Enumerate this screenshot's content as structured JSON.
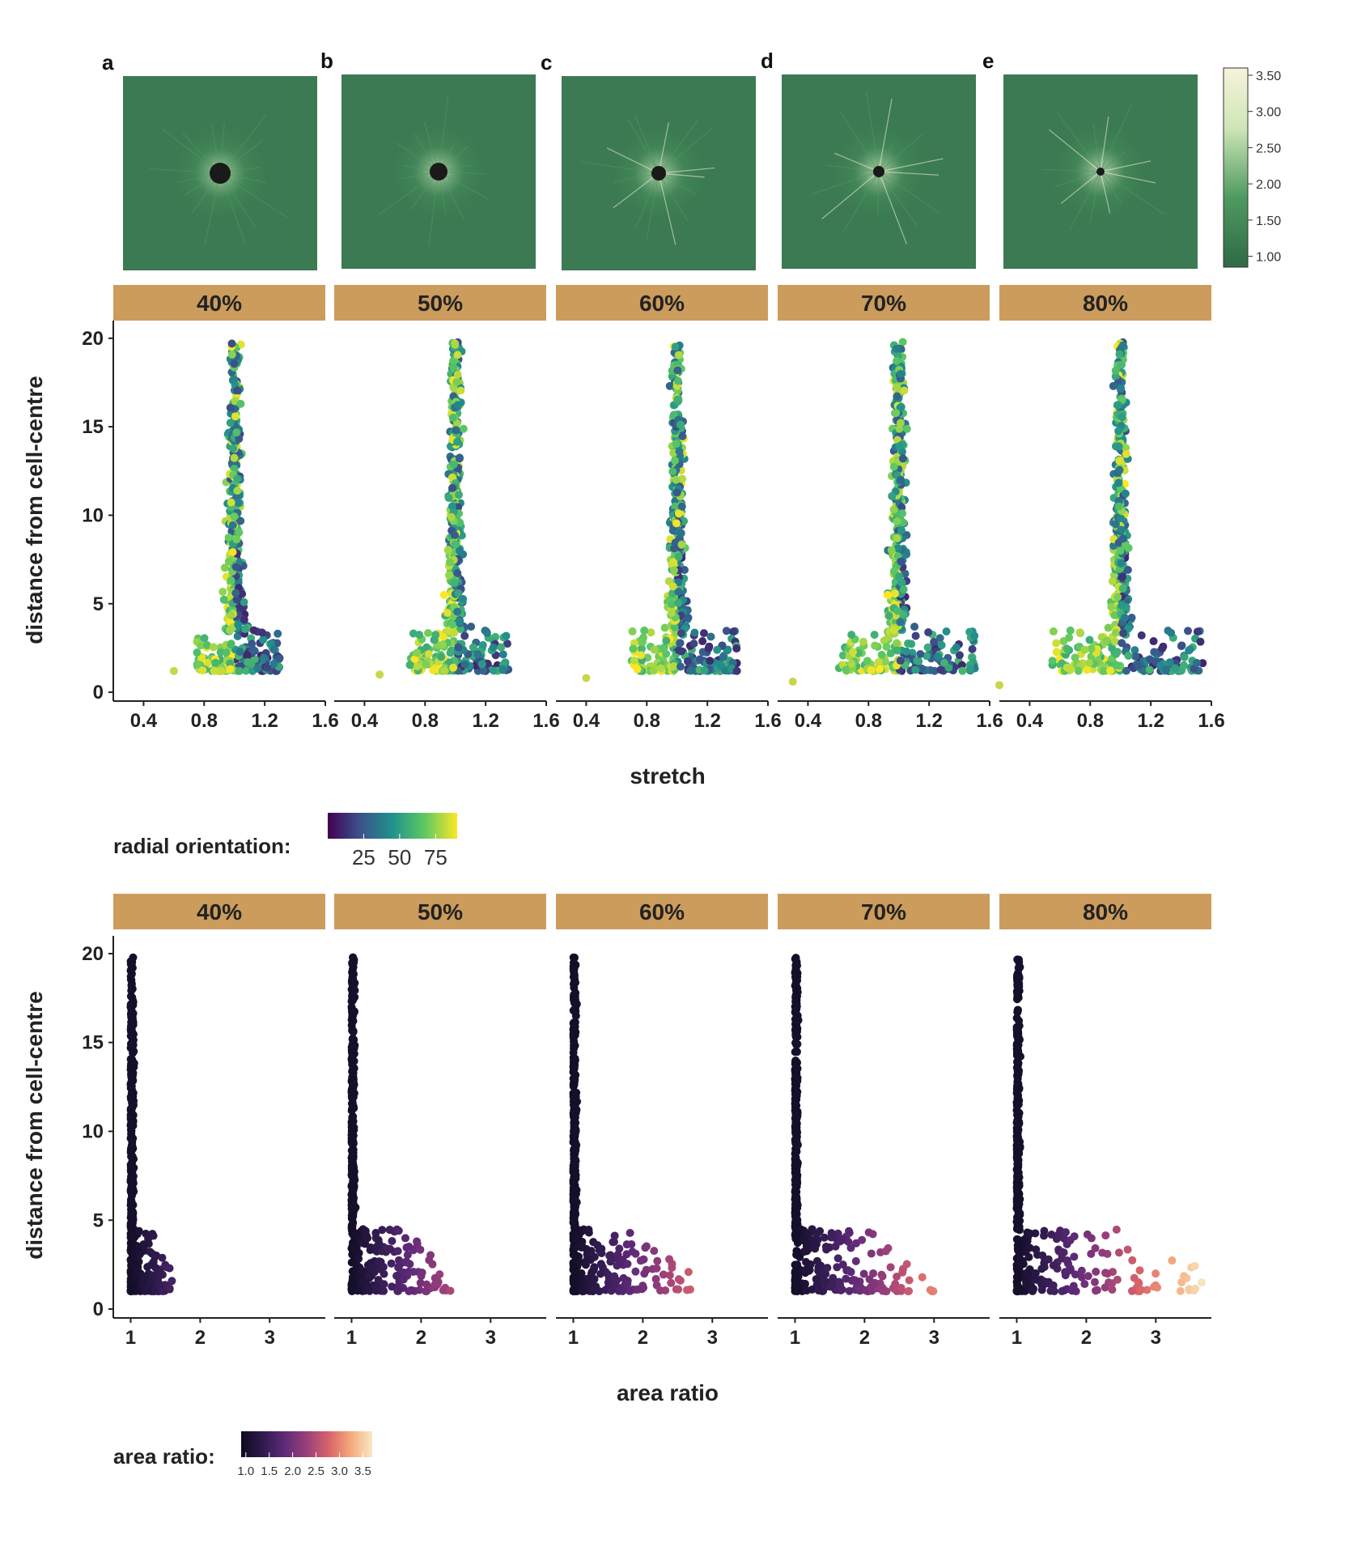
{
  "panels": {
    "letters": [
      "a",
      "b",
      "c",
      "d",
      "e"
    ],
    "colorbar_ticks": [
      "3.50",
      "3.00",
      "2.50",
      "2.00",
      "1.50",
      "1.00"
    ],
    "colorbar_range": [
      0.85,
      3.6
    ],
    "colors": {
      "low": "#2f6a46",
      "mid": "#4f9a60",
      "high": "#f6f3dc",
      "background": "#3b7a52",
      "hole": "#1a1a1a"
    }
  },
  "strip_color": "#cc9c5c",
  "chart_data": [
    {
      "type": "scatter",
      "facets": [
        "40%",
        "50%",
        "60%",
        "70%",
        "80%"
      ],
      "xlabel": "stretch",
      "ylabel": "distance from cell-centre",
      "xlim": [
        0.2,
        1.6
      ],
      "ylim": [
        -0.5,
        21
      ],
      "xticks": [
        "0.4",
        "0.8",
        "1.2",
        "1.6"
      ],
      "xtick_values": [
        0.4,
        0.8,
        1.2,
        1.6
      ],
      "yticks": [
        "0",
        "5",
        "10",
        "15",
        "20"
      ],
      "ytick_values": [
        0,
        5,
        10,
        15,
        20
      ],
      "colour_by": "radial orientation",
      "outlier_points": [
        {
          "facet": "40%",
          "x": 0.6,
          "y": 1.2
        },
        {
          "facet": "50%",
          "x": 0.5,
          "y": 1.0
        },
        {
          "facet": "60%",
          "x": 0.4,
          "y": 0.8
        },
        {
          "facet": "70%",
          "x": 0.3,
          "y": 0.6
        },
        {
          "facet": "80%",
          "x": 0.2,
          "y": 0.4
        }
      ],
      "min_stretch": [
        0.75,
        0.7,
        0.7,
        0.6,
        0.55
      ],
      "max_stretch": [
        1.3,
        1.35,
        1.4,
        1.52,
        1.55
      ],
      "legend": {
        "title": "radial orientation:",
        "ticks": [
          "25",
          "50",
          "75"
        ],
        "tick_values": [
          25,
          50,
          75
        ],
        "range": [
          0,
          90
        ],
        "colors": [
          "#440154",
          "#3b528b",
          "#21918c",
          "#5ec962",
          "#fde725"
        ]
      }
    },
    {
      "type": "scatter",
      "facets": [
        "40%",
        "50%",
        "60%",
        "70%",
        "80%"
      ],
      "xlabel": "area ratio",
      "ylabel": "distance from cell-centre",
      "xlim": [
        0.75,
        3.8
      ],
      "ylim": [
        -0.5,
        21
      ],
      "xticks": [
        "1",
        "2",
        "3"
      ],
      "xtick_values": [
        1,
        2,
        3
      ],
      "yticks": [
        "0",
        "5",
        "10",
        "15",
        "20"
      ],
      "ytick_values": [
        0,
        5,
        10,
        15,
        20
      ],
      "colour_by": "area ratio",
      "max_area_ratio": [
        1.6,
        2.5,
        2.7,
        3.0,
        3.7
      ],
      "legend": {
        "title": "area ratio:",
        "ticks": [
          "1.0",
          "1.5",
          "2.0",
          "2.5",
          "3.0",
          "3.5"
        ],
        "tick_values": [
          1.0,
          1.5,
          2.0,
          2.5,
          3.0,
          3.5
        ],
        "range": [
          0.9,
          3.7
        ],
        "colors": [
          "#0d0b1f",
          "#2f1b4e",
          "#5e2a78",
          "#9a3f7a",
          "#d8646a",
          "#f4a77a",
          "#f8e8c4"
        ]
      }
    }
  ]
}
